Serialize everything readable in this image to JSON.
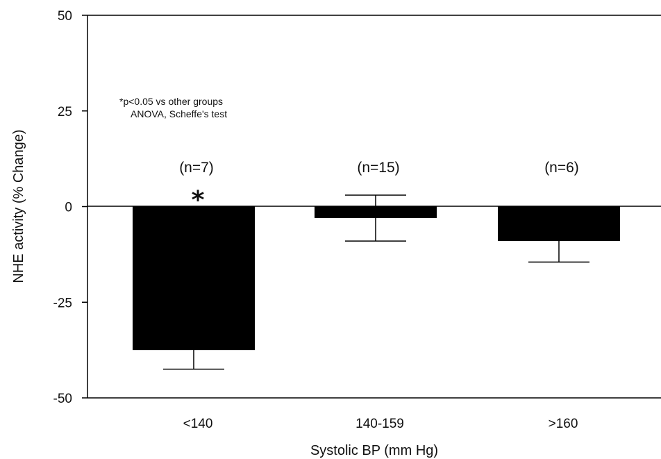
{
  "chart_data": {
    "type": "bar",
    "categories": [
      "<140",
      "140-159",
      ">160"
    ],
    "values": [
      -37.5,
      -3,
      -9
    ],
    "error": [
      5,
      6,
      5.5
    ],
    "n_labels": [
      "(n=7)",
      "(n=15)",
      "(n=6)"
    ],
    "significance": [
      "*",
      "",
      ""
    ],
    "xlabel": "Systolic BP (mm Hg)",
    "ylabel": "NHE activity (% Change)",
    "ylim": [
      -50,
      50
    ],
    "yticks": [
      50,
      25,
      0,
      -25,
      -50
    ],
    "ytick_labels": [
      "50",
      "25",
      "0",
      "-25",
      "-50"
    ],
    "annotation": [
      "*p<0.05 vs other groups",
      "ANOVA, Scheffe's test"
    ],
    "bar_color": "#000000"
  }
}
